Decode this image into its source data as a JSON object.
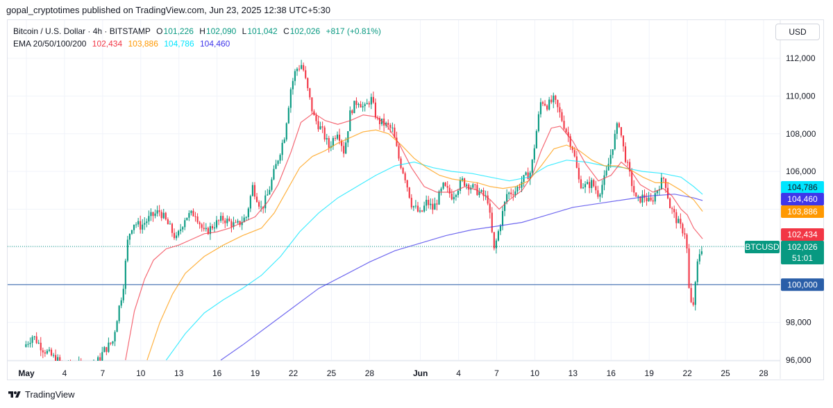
{
  "attribution": "gopal_cryptotimes published on TradingView.com, Jun 23, 2025 12:38 UTC+5:30",
  "legend": {
    "symbol": "Bitcoin / U.S. Dollar · 4h · BITSTAMP",
    "open_label": "O",
    "open": "101,226",
    "high_label": "H",
    "high": "102,090",
    "low_label": "L",
    "low": "101,042",
    "close_label": "C",
    "close": "102,026",
    "change": "+817 (+0.81%)",
    "ema_label": "EMA 20/50/100/200",
    "ema20": "102,434",
    "ema50": "103,886",
    "ema100": "104,786",
    "ema200": "104,460"
  },
  "currency": "USD",
  "footer": {
    "brand": "TradingView",
    "icon": "tradingview-logo-icon"
  },
  "colors": {
    "up": "#089981",
    "down": "#f23645",
    "ema20": "#f23645",
    "ema50": "#ff9800",
    "ema100": "#00e5ff",
    "ema200": "#3f36ea",
    "hline": "#2a5ea8",
    "grid": "#f0f3fa"
  },
  "chart_data": {
    "type": "candlestick",
    "symbol": "BTCUSD",
    "interval": "4h",
    "ylim": [
      96000,
      112000
    ],
    "y_ticks": [
      96000,
      98000,
      100000,
      102000,
      104000,
      106000,
      108000,
      110000,
      112000
    ],
    "y_tick_labels": [
      "96,000",
      "98,000",
      "100,000",
      "102,000",
      "104,000",
      "106,000",
      "108,000",
      "110,000",
      "112,000"
    ],
    "x_ticks": [
      "May",
      "4",
      "7",
      "10",
      "13",
      "16",
      "19",
      "22",
      "25",
      "28",
      "Jun",
      "4",
      "7",
      "10",
      "13",
      "16",
      "19",
      "22",
      "25",
      "28"
    ],
    "x_tick_days": [
      1,
      4,
      7,
      10,
      13,
      16,
      19,
      22,
      25,
      28,
      32,
      35,
      38,
      41,
      44,
      47,
      50,
      53,
      56,
      59
    ],
    "x_day_range": [
      0.8,
      61.3
    ],
    "last_day": 54.2,
    "horizontal_line": {
      "price": 100000,
      "label": "100,000"
    },
    "price_tags": [
      {
        "name": "EMA 100",
        "price": 104786,
        "label": "104,786",
        "color": "#00e5ff",
        "text": "#131722"
      },
      {
        "name": "EMA 200",
        "price": 104460,
        "label": "104,460",
        "color": "#3f36ea",
        "text": "#ffffff"
      },
      {
        "name": "EMA 50",
        "price": 103886,
        "label": "103,886",
        "color": "#ff9800",
        "text": "#ffffff"
      },
      {
        "name": "EMA 20",
        "price": 102434,
        "label": "102,434",
        "color": "#f23645",
        "text": "#ffffff"
      },
      {
        "name": "BTCUSD",
        "price": 102026,
        "label": "102,026",
        "sub": "51:01",
        "color": "#089981",
        "text": "#ffffff",
        "symbol_label": "BTCUSD"
      }
    ],
    "close_path": [
      [
        0.8,
        96700
      ],
      [
        1.5,
        97300
      ],
      [
        2.3,
        96600
      ],
      [
        3.0,
        96200
      ],
      [
        3.8,
        95800
      ],
      [
        4.5,
        95600
      ],
      [
        5.5,
        95700
      ],
      [
        6.5,
        95800
      ],
      [
        7.1,
        96500
      ],
      [
        7.8,
        97000
      ],
      [
        8.2,
        98500
      ],
      [
        8.6,
        99800
      ],
      [
        9.0,
        102500
      ],
      [
        9.4,
        103300
      ],
      [
        10.0,
        103100
      ],
      [
        10.8,
        103600
      ],
      [
        11.5,
        103900
      ],
      [
        12.3,
        103000
      ],
      [
        12.8,
        102400
      ],
      [
        13.5,
        103600
      ],
      [
        14.3,
        103800
      ],
      [
        15.0,
        102700
      ],
      [
        15.8,
        103200
      ],
      [
        16.5,
        103500
      ],
      [
        17.5,
        103100
      ],
      [
        18.3,
        103600
      ],
      [
        18.8,
        105200
      ],
      [
        19.5,
        104000
      ],
      [
        20.0,
        104800
      ],
      [
        20.8,
        106700
      ],
      [
        21.3,
        107900
      ],
      [
        21.8,
        110400
      ],
      [
        22.2,
        111400
      ],
      [
        22.7,
        111700
      ],
      [
        23.0,
        110700
      ],
      [
        23.6,
        108900
      ],
      [
        24.3,
        108100
      ],
      [
        24.8,
        107300
      ],
      [
        25.5,
        108200
      ],
      [
        26.0,
        107000
      ],
      [
        26.5,
        109200
      ],
      [
        27.1,
        109800
      ],
      [
        27.6,
        109300
      ],
      [
        28.1,
        109900
      ],
      [
        28.6,
        108700
      ],
      [
        29.2,
        108500
      ],
      [
        29.8,
        108200
      ],
      [
        30.3,
        106700
      ],
      [
        30.8,
        105700
      ],
      [
        31.3,
        104300
      ],
      [
        32.0,
        103700
      ],
      [
        32.5,
        104400
      ],
      [
        33.0,
        104000
      ],
      [
        33.8,
        105200
      ],
      [
        34.5,
        104700
      ],
      [
        35.3,
        105500
      ],
      [
        36.0,
        105200
      ],
      [
        36.8,
        104800
      ],
      [
        37.3,
        104500
      ],
      [
        37.8,
        101800
      ],
      [
        38.3,
        103300
      ],
      [
        38.8,
        104800
      ],
      [
        39.5,
        105000
      ],
      [
        40.0,
        105500
      ],
      [
        40.7,
        106000
      ],
      [
        41.1,
        108000
      ],
      [
        41.5,
        109800
      ],
      [
        42.0,
        109500
      ],
      [
        42.5,
        109800
      ],
      [
        43.0,
        109000
      ],
      [
        43.5,
        108100
      ],
      [
        44.0,
        107200
      ],
      [
        44.5,
        105400
      ],
      [
        45.0,
        105200
      ],
      [
        45.5,
        105400
      ],
      [
        46.0,
        104800
      ],
      [
        46.6,
        105800
      ],
      [
        47.1,
        107300
      ],
      [
        47.6,
        108700
      ],
      [
        48.0,
        107100
      ],
      [
        48.5,
        105700
      ],
      [
        49.0,
        104400
      ],
      [
        49.6,
        104700
      ],
      [
        50.1,
        104300
      ],
      [
        50.8,
        105300
      ],
      [
        51.2,
        105700
      ],
      [
        51.6,
        104200
      ],
      [
        52.1,
        103500
      ],
      [
        52.5,
        103000
      ],
      [
        52.9,
        102700
      ],
      [
        53.2,
        98900
      ],
      [
        53.5,
        99000
      ],
      [
        53.8,
        101100
      ],
      [
        54.0,
        101800
      ],
      [
        54.2,
        102026
      ]
    ],
    "ema20_path": [
      [
        8.8,
        96000
      ],
      [
        9.5,
        98600
      ],
      [
        10.3,
        100300
      ],
      [
        11.0,
        101300
      ],
      [
        12.0,
        101900
      ],
      [
        13.0,
        102100
      ],
      [
        14.0,
        102400
      ],
      [
        15.0,
        102700
      ],
      [
        16.0,
        102800
      ],
      [
        17.0,
        103000
      ],
      [
        18.0,
        103300
      ],
      [
        19.0,
        103600
      ],
      [
        20.0,
        104400
      ],
      [
        20.8,
        105300
      ],
      [
        21.8,
        107000
      ],
      [
        22.6,
        108600
      ],
      [
        23.6,
        109100
      ],
      [
        24.5,
        108700
      ],
      [
        25.5,
        108500
      ],
      [
        26.5,
        108700
      ],
      [
        27.5,
        109000
      ],
      [
        28.5,
        108900
      ],
      [
        29.3,
        108500
      ],
      [
        30.3,
        107500
      ],
      [
        31.3,
        106200
      ],
      [
        32.3,
        105200
      ],
      [
        33.3,
        104900
      ],
      [
        34.5,
        104900
      ],
      [
        35.5,
        105200
      ],
      [
        36.5,
        105000
      ],
      [
        37.5,
        104500
      ],
      [
        38.2,
        104000
      ],
      [
        39.0,
        104500
      ],
      [
        40.0,
        105000
      ],
      [
        40.8,
        105800
      ],
      [
        41.5,
        107100
      ],
      [
        42.3,
        108300
      ],
      [
        43.0,
        108400
      ],
      [
        44.0,
        107600
      ],
      [
        45.0,
        106400
      ],
      [
        46.0,
        105500
      ],
      [
        47.0,
        105800
      ],
      [
        47.8,
        106500
      ],
      [
        48.5,
        106100
      ],
      [
        49.3,
        105300
      ],
      [
        50.3,
        104900
      ],
      [
        51.1,
        105100
      ],
      [
        51.8,
        104700
      ],
      [
        52.5,
        104000
      ],
      [
        53.0,
        103700
      ],
      [
        53.5,
        103000
      ],
      [
        54.2,
        102434
      ]
    ],
    "ema50_path": [
      [
        10.5,
        96000
      ],
      [
        11.5,
        98000
      ],
      [
        12.5,
        99500
      ],
      [
        13.5,
        100600
      ],
      [
        15.0,
        101500
      ],
      [
        16.5,
        102100
      ],
      [
        18.0,
        102600
      ],
      [
        19.5,
        103000
      ],
      [
        20.5,
        103800
      ],
      [
        21.5,
        105000
      ],
      [
        22.5,
        106200
      ],
      [
        23.5,
        106800
      ],
      [
        24.5,
        107100
      ],
      [
        25.5,
        107500
      ],
      [
        26.5,
        107800
      ],
      [
        27.5,
        108100
      ],
      [
        28.5,
        108200
      ],
      [
        29.5,
        108000
      ],
      [
        30.5,
        107400
      ],
      [
        31.5,
        106700
      ],
      [
        32.5,
        106200
      ],
      [
        33.5,
        105800
      ],
      [
        34.5,
        105600
      ],
      [
        35.5,
        105500
      ],
      [
        36.5,
        105400
      ],
      [
        37.5,
        105200
      ],
      [
        38.5,
        105100
      ],
      [
        39.5,
        105200
      ],
      [
        40.5,
        105500
      ],
      [
        41.5,
        106300
      ],
      [
        42.5,
        107200
      ],
      [
        43.5,
        107400
      ],
      [
        44.5,
        107100
      ],
      [
        45.5,
        106600
      ],
      [
        46.5,
        106300
      ],
      [
        47.5,
        106300
      ],
      [
        48.5,
        106100
      ],
      [
        49.5,
        105700
      ],
      [
        50.5,
        105400
      ],
      [
        51.5,
        105400
      ],
      [
        52.5,
        105000
      ],
      [
        53.5,
        104500
      ],
      [
        54.2,
        103886
      ]
    ],
    "ema100_path": [
      [
        12.0,
        96000
      ],
      [
        13.5,
        97400
      ],
      [
        15.0,
        98500
      ],
      [
        16.5,
        99200
      ],
      [
        18.0,
        99800
      ],
      [
        19.5,
        100500
      ],
      [
        21.0,
        101500
      ],
      [
        22.5,
        102800
      ],
      [
        24.0,
        103800
      ],
      [
        25.5,
        104600
      ],
      [
        27.0,
        105200
      ],
      [
        28.5,
        105800
      ],
      [
        30.0,
        106300
      ],
      [
        31.5,
        106500
      ],
      [
        33.0,
        106200
      ],
      [
        34.5,
        106000
      ],
      [
        36.0,
        105900
      ],
      [
        37.5,
        105700
      ],
      [
        39.0,
        105500
      ],
      [
        40.5,
        105700
      ],
      [
        42.0,
        106300
      ],
      [
        43.5,
        106600
      ],
      [
        45.0,
        106500
      ],
      [
        46.5,
        106300
      ],
      [
        48.0,
        106200
      ],
      [
        49.5,
        106000
      ],
      [
        51.0,
        105900
      ],
      [
        52.5,
        105700
      ],
      [
        53.5,
        105200
      ],
      [
        54.2,
        104786
      ]
    ],
    "ema200_path": [
      [
        16.3,
        96000
      ],
      [
        18.0,
        96800
      ],
      [
        20.0,
        97800
      ],
      [
        22.0,
        98800
      ],
      [
        24.0,
        99800
      ],
      [
        26.0,
        100500
      ],
      [
        28.0,
        101200
      ],
      [
        30.0,
        101800
      ],
      [
        32.0,
        102200
      ],
      [
        34.0,
        102600
      ],
      [
        36.0,
        102900
      ],
      [
        38.0,
        103100
      ],
      [
        40.0,
        103300
      ],
      [
        42.0,
        103700
      ],
      [
        44.0,
        104100
      ],
      [
        46.0,
        104300
      ],
      [
        48.0,
        104500
      ],
      [
        50.0,
        104700
      ],
      [
        52.0,
        104800
      ],
      [
        53.5,
        104600
      ],
      [
        54.2,
        104460
      ]
    ]
  }
}
